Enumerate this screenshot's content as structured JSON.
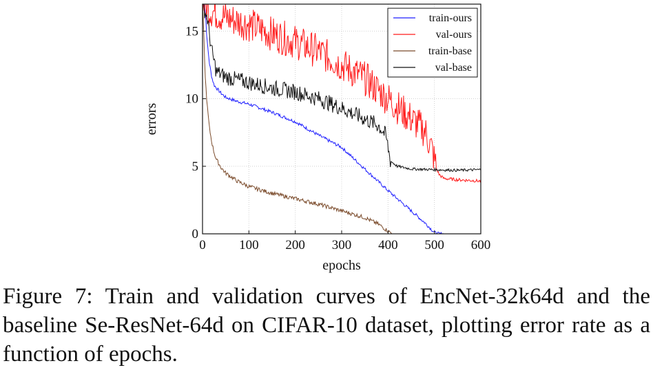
{
  "caption": "Figure 7: Train and validation curves of EncNet-32k64d and the baseline Se-ResNet-64d on CIFAR-10 dataset, plotting error rate as a function of epochs.",
  "chart_data": {
    "type": "line",
    "xlabel": "epochs",
    "ylabel": "errors",
    "xlim": [
      0,
      600
    ],
    "ylim": [
      0,
      17
    ],
    "x_ticks": [
      "0",
      "100",
      "200",
      "300",
      "400",
      "500",
      "600"
    ],
    "y_ticks": [
      "0",
      "5",
      "10",
      "15"
    ],
    "grid": true,
    "legend_position": "top-right",
    "series": [
      {
        "name": "train-ours",
        "color": "#1f1fff",
        "points": [
          [
            0,
            17
          ],
          [
            5,
            17
          ],
          [
            10,
            14.2
          ],
          [
            15,
            12.6
          ],
          [
            20,
            11.6
          ],
          [
            25,
            11.0
          ],
          [
            30,
            10.8
          ],
          [
            40,
            10.4
          ],
          [
            50,
            10.1
          ],
          [
            75,
            9.8
          ],
          [
            100,
            9.6
          ],
          [
            150,
            9.0
          ],
          [
            200,
            8.3
          ],
          [
            250,
            7.3
          ],
          [
            300,
            6.4
          ],
          [
            350,
            4.8
          ],
          [
            400,
            3.2
          ],
          [
            450,
            1.7
          ],
          [
            480,
            0.8
          ],
          [
            500,
            0.1
          ],
          [
            510,
            0.0
          ],
          [
            520,
            0.0
          ]
        ]
      },
      {
        "name": "val-ours",
        "color": "#ff1a1a",
        "points": [
          [
            0,
            17
          ],
          [
            20,
            16.5
          ],
          [
            50,
            16.0
          ],
          [
            100,
            15.5
          ],
          [
            150,
            14.8
          ],
          [
            200,
            14.2
          ],
          [
            250,
            13.5
          ],
          [
            300,
            12.5
          ],
          [
            350,
            11.5
          ],
          [
            400,
            10.0
          ],
          [
            450,
            8.5
          ],
          [
            480,
            7.6
          ],
          [
            495,
            6.2
          ],
          [
            505,
            4.8
          ],
          [
            510,
            4.4
          ],
          [
            520,
            4.1
          ],
          [
            550,
            4.0
          ],
          [
            580,
            3.95
          ],
          [
            600,
            3.9
          ]
        ]
      },
      {
        "name": "train-base",
        "color": "#7a4a2a",
        "points": [
          [
            0,
            17
          ],
          [
            3,
            14.5
          ],
          [
            6,
            11.5
          ],
          [
            10,
            9.5
          ],
          [
            15,
            7.8
          ],
          [
            20,
            6.8
          ],
          [
            25,
            6.0
          ],
          [
            30,
            5.5
          ],
          [
            40,
            4.9
          ],
          [
            50,
            4.5
          ],
          [
            75,
            3.9
          ],
          [
            100,
            3.5
          ],
          [
            150,
            3.0
          ],
          [
            200,
            2.6
          ],
          [
            250,
            2.2
          ],
          [
            300,
            1.7
          ],
          [
            350,
            1.2
          ],
          [
            380,
            0.7
          ],
          [
            400,
            0.2
          ],
          [
            410,
            0.0
          ]
        ]
      },
      {
        "name": "val-base",
        "color": "#111111",
        "points": [
          [
            0,
            17
          ],
          [
            10,
            16.0
          ],
          [
            20,
            13.5
          ],
          [
            30,
            12.0
          ],
          [
            50,
            11.6
          ],
          [
            100,
            11.2
          ],
          [
            150,
            10.8
          ],
          [
            200,
            10.5
          ],
          [
            250,
            10.0
          ],
          [
            300,
            9.3
          ],
          [
            350,
            8.5
          ],
          [
            380,
            8.0
          ],
          [
            395,
            7.3
          ],
          [
            400,
            6.4
          ],
          [
            405,
            5.4
          ],
          [
            420,
            5.0
          ],
          [
            450,
            4.8
          ],
          [
            500,
            4.75
          ],
          [
            550,
            4.7
          ],
          [
            600,
            4.75
          ]
        ]
      }
    ]
  }
}
